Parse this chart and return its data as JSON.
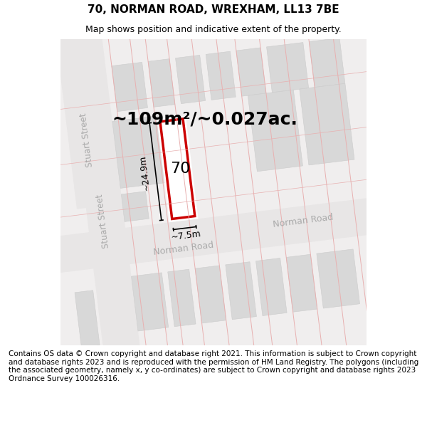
{
  "title": "70, NORMAN ROAD, WREXHAM, LL13 7BE",
  "subtitle": "Map shows position and indicative extent of the property.",
  "area_text": "~109m²/~0.027ac.",
  "dim_width": "~7.5m",
  "dim_height": "~24.9m",
  "label": "70",
  "footer": "Contains OS data © Crown copyright and database right 2021. This information is subject to Crown copyright and database rights 2023 and is reproduced with the permission of HM Land Registry. The polygons (including the associated geometry, namely x, y co-ordinates) are subject to Crown copyright and database rights 2023 Ordnance Survey 100026316.",
  "bg_color": "#f5f5f5",
  "map_bg": "#f0eeee",
  "building_fill": "#d8d8d8",
  "building_edge": "#cccccc",
  "road_fill": "#ffffff",
  "highlight_fill": "#ffffff",
  "highlight_edge": "#cc0000",
  "grid_color": "#e8b0b0",
  "street_label_color": "#aaaaaa",
  "title_fontsize": 11,
  "subtitle_fontsize": 9,
  "area_fontsize": 18,
  "label_fontsize": 16,
  "footer_fontsize": 7.5
}
